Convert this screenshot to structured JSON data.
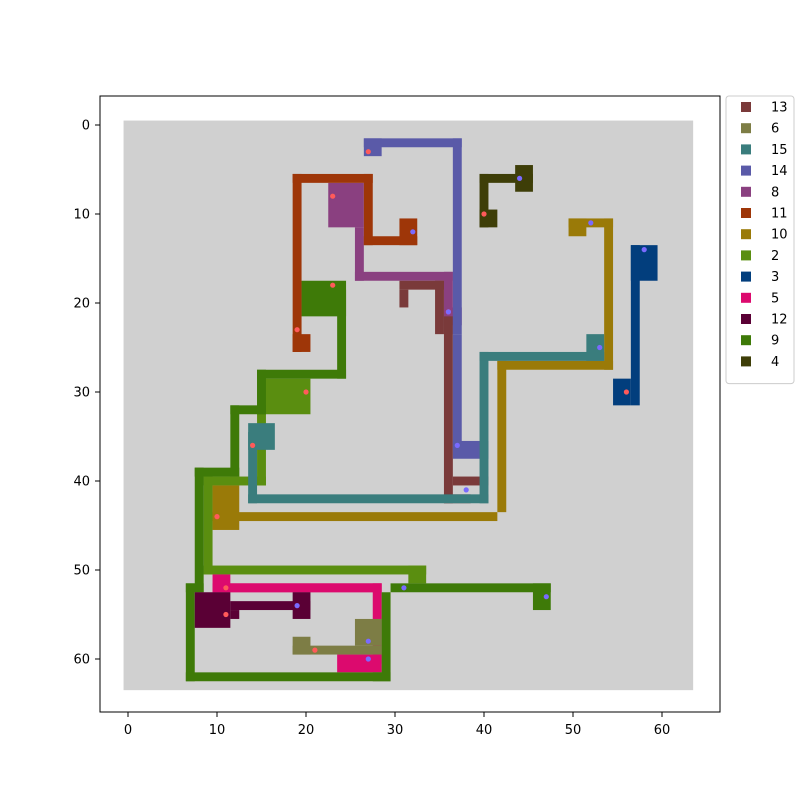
{
  "chart_data": {
    "type": "heatmap",
    "title": "",
    "xlabel": "",
    "ylabel": "",
    "xlim": [
      -3,
      66
    ],
    "ylim": [
      66,
      -3
    ],
    "grid": false,
    "background_color": "#d0d0d0",
    "grid_extent": [
      0,
      63
    ],
    "x_ticks": [
      0,
      10,
      20,
      30,
      40,
      50,
      60
    ],
    "y_ticks": [
      0,
      10,
      20,
      30,
      40,
      50,
      60
    ],
    "legend_placement": "outside-top-right",
    "series": [
      {
        "name": "13",
        "color": "#7a3a3a",
        "points": [
          {
            "x": 36,
            "y": 21
          },
          {
            "x": 38,
            "y": 41
          }
        ]
      },
      {
        "name": "6",
        "color": "#7d7d45",
        "points": [
          {
            "x": 21,
            "y": 59
          },
          {
            "x": 27,
            "y": 58
          }
        ]
      },
      {
        "name": "15",
        "color": "#3a7d7d",
        "points": [
          {
            "x": 14,
            "y": 36
          },
          {
            "x": 53,
            "y": 25
          }
        ]
      },
      {
        "name": "14",
        "color": "#5a5aa8",
        "points": [
          {
            "x": 27,
            "y": 3
          },
          {
            "x": 37,
            "y": 36
          }
        ]
      },
      {
        "name": "8",
        "color": "#8a4080",
        "points": [
          {
            "x": 23,
            "y": 8
          },
          {
            "x": 36,
            "y": 21
          }
        ]
      },
      {
        "name": "11",
        "color": "#9e3608",
        "points": [
          {
            "x": 19,
            "y": 23
          },
          {
            "x": 32,
            "y": 12
          }
        ]
      },
      {
        "name": "10",
        "color": "#9a7a08",
        "points": [
          {
            "x": 10,
            "y": 44
          },
          {
            "x": 52,
            "y": 11
          }
        ]
      },
      {
        "name": "2",
        "color": "#5a8e10",
        "points": [
          {
            "x": 20,
            "y": 30
          },
          {
            "x": 31,
            "y": 52
          }
        ]
      },
      {
        "name": "3",
        "color": "#023e7d",
        "points": [
          {
            "x": 56,
            "y": 30
          },
          {
            "x": 58,
            "y": 14
          }
        ]
      },
      {
        "name": "5",
        "color": "#dc0a6e",
        "points": [
          {
            "x": 11,
            "y": 52
          },
          {
            "x": 27,
            "y": 60
          }
        ]
      },
      {
        "name": "12",
        "color": "#5a0035",
        "points": [
          {
            "x": 11,
            "y": 55
          },
          {
            "x": 19,
            "y": 54
          }
        ]
      },
      {
        "name": "9",
        "color": "#3e7a08",
        "points": [
          {
            "x": 23,
            "y": 18
          },
          {
            "x": 47,
            "y": 53
          }
        ]
      },
      {
        "name": "4",
        "color": "#3e3e08",
        "points": [
          {
            "x": 40,
            "y": 10
          },
          {
            "x": 44,
            "y": 6
          }
        ]
      }
    ]
  }
}
